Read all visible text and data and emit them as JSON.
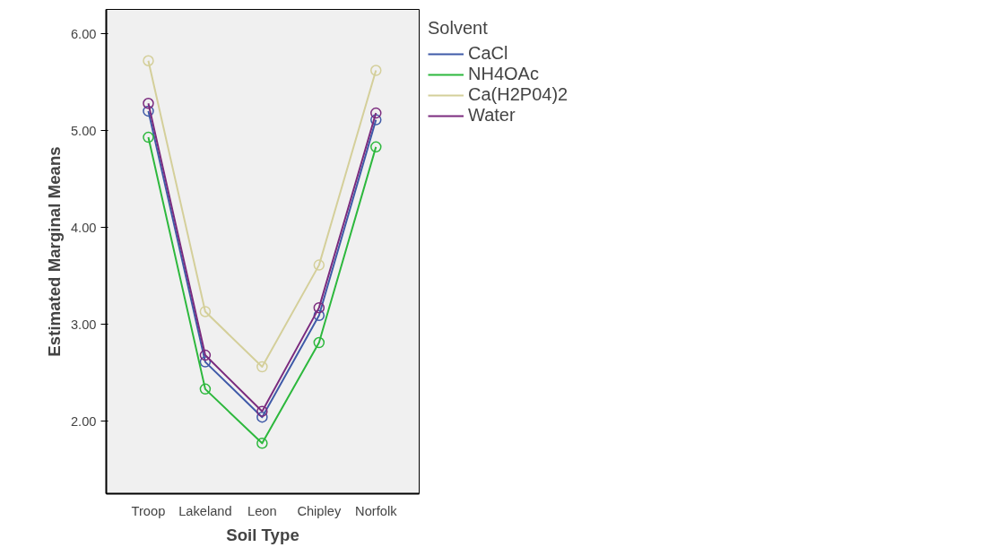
{
  "chart_data": {
    "type": "line",
    "xlabel": "Soil Type",
    "ylabel": "Estimated Marginal Means",
    "legend_title": "Solvent",
    "categories": [
      "Troop",
      "Lakeland",
      "Leon",
      "Chipley",
      "Norfolk"
    ],
    "series": [
      {
        "name": "CaCl",
        "color": "#3f5aa8",
        "values": [
          5.2,
          2.61,
          2.04,
          3.09,
          5.11
        ]
      },
      {
        "name": "NH4OAc",
        "color": "#2db83d",
        "values": [
          4.93,
          2.33,
          1.77,
          2.81,
          4.83
        ]
      },
      {
        "name": "Ca(H2P04)2",
        "color": "#d4cf9a",
        "values": [
          5.72,
          3.13,
          2.56,
          3.61,
          5.62
        ]
      },
      {
        "name": "Water",
        "color": "#7b2b7e",
        "values": [
          5.28,
          2.68,
          2.1,
          3.17,
          5.18
        ]
      }
    ],
    "ylim": [
      1.25,
      6.25
    ],
    "yticks": [
      {
        "value": 2,
        "label": "2.00"
      },
      {
        "value": 3,
        "label": "3.00"
      },
      {
        "value": 4,
        "label": "4.00"
      },
      {
        "value": 5,
        "label": "5.00"
      },
      {
        "value": 6,
        "label": "6.00"
      }
    ],
    "grid": false,
    "legend": "top right",
    "marker": "circle",
    "line_style": "solid"
  }
}
